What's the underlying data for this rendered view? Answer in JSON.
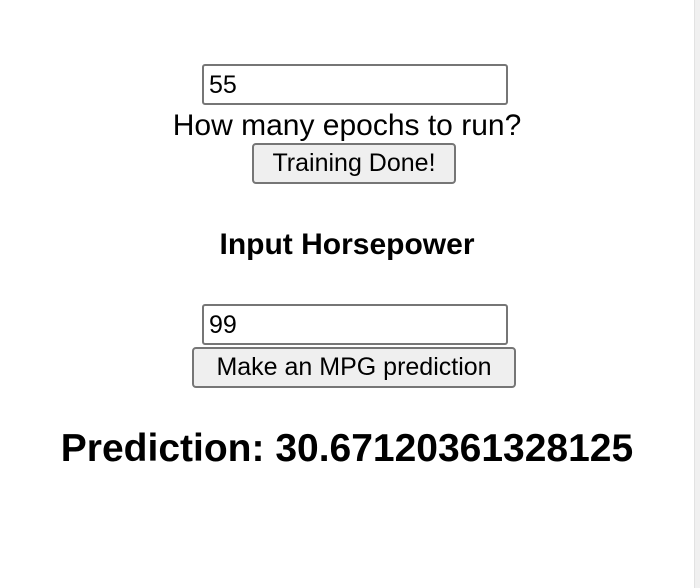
{
  "training": {
    "epochs_value": "55",
    "epochs_label": "How many epochs to run?",
    "button_label": "Training Done!"
  },
  "prediction_form": {
    "heading": "Input Horsepower",
    "horsepower_value": "99",
    "button_label": "Make an MPG prediction"
  },
  "result": {
    "prediction_text": "Prediction: 30.67120361328125"
  }
}
